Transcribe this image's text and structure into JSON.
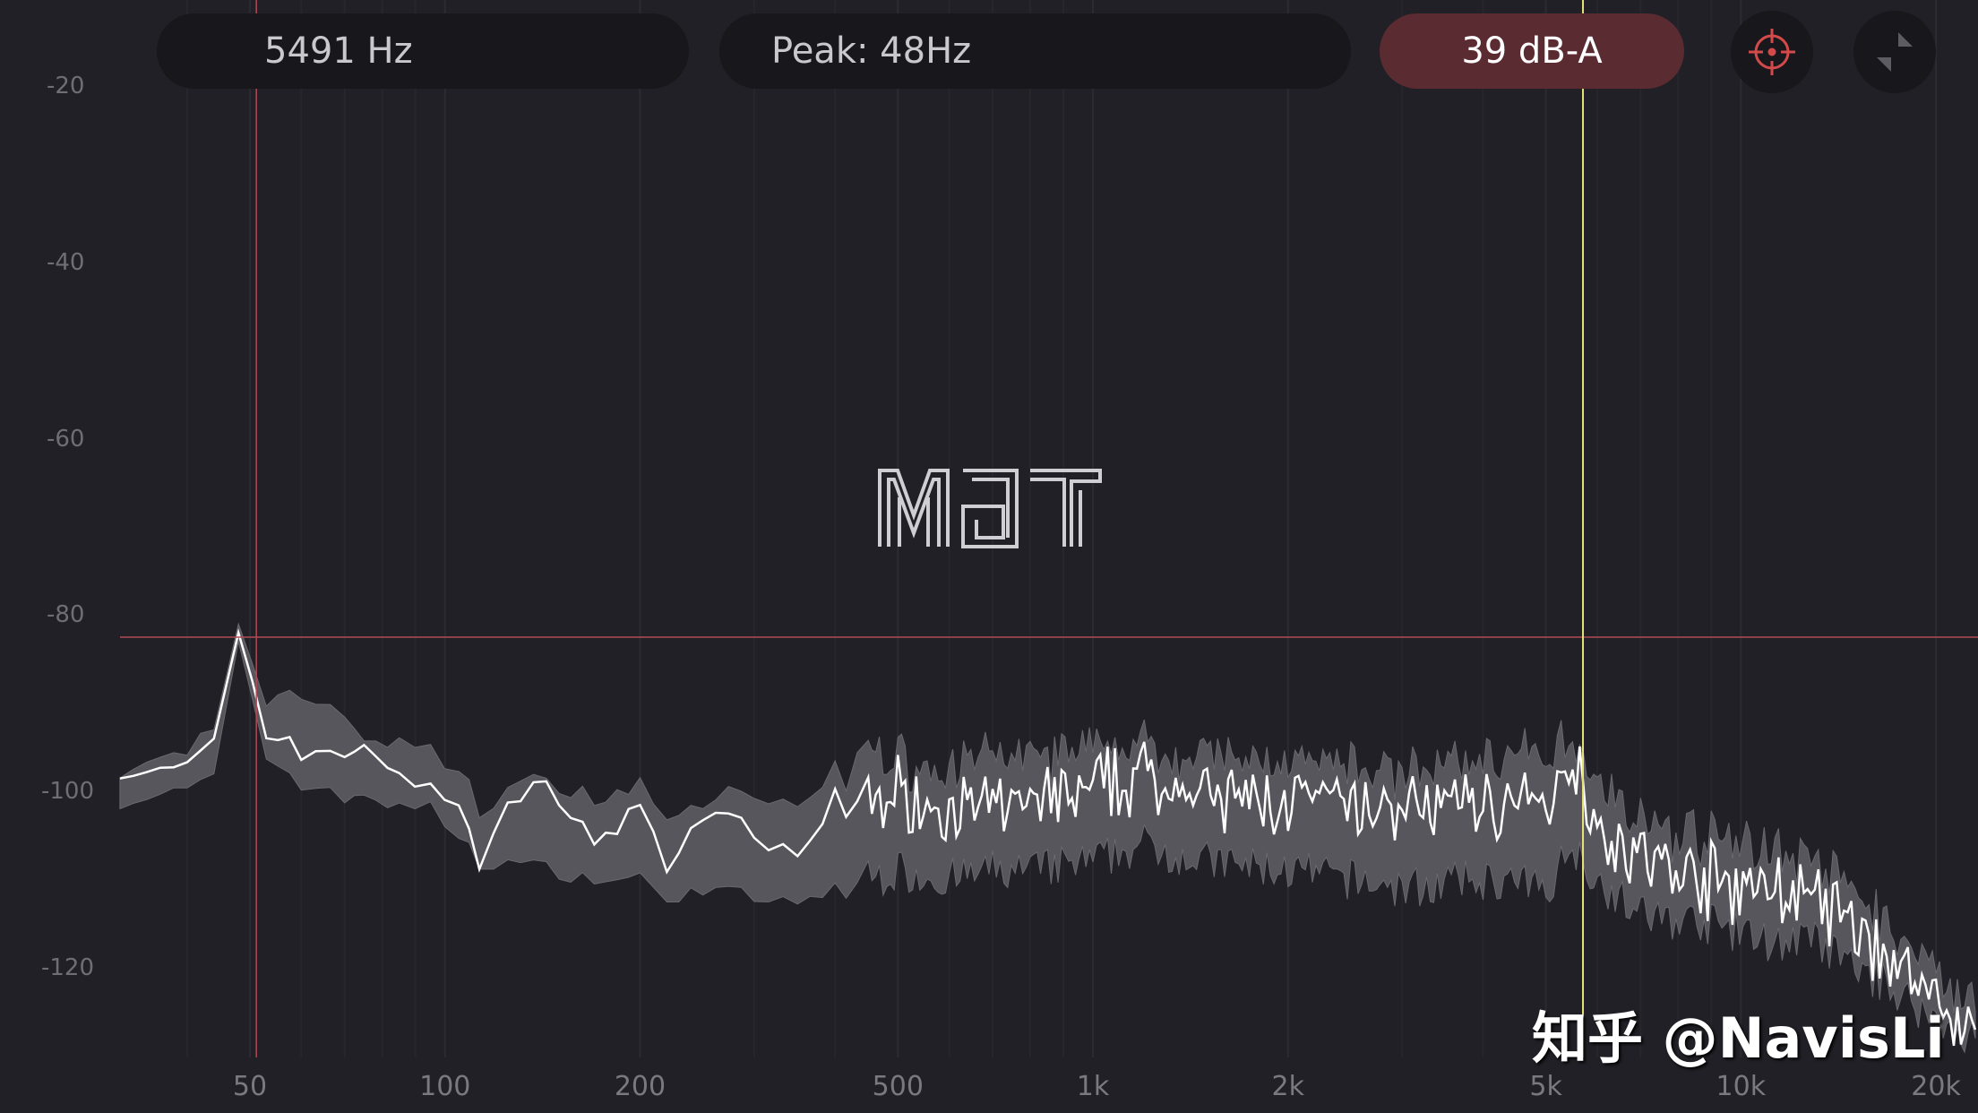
{
  "header": {
    "cursor_frequency": "5491 Hz",
    "peak": "Peak: 48Hz",
    "level": "39 dB-A",
    "level_color": "#5a2b31",
    "target_icon": "crosshair-target-icon",
    "fullscreen_icon": "collapse-arrows-icon"
  },
  "logo_text": "MDT",
  "watermark": "知乎 @NavisLi",
  "colors": {
    "background": "#212026",
    "band": "#57565c",
    "line": "#ffffff",
    "crosshair": "#b04a55",
    "cursor": "#e8e27a"
  },
  "chart_data": {
    "type": "area",
    "title": "",
    "xlabel": "",
    "ylabel": "",
    "x_scale": "log",
    "xlim": [
      31.5,
      23000
    ],
    "ylim": [
      -130,
      -14
    ],
    "x_ticks": [
      {
        "v": 50,
        "label": "50"
      },
      {
        "v": 100,
        "label": "100"
      },
      {
        "v": 200,
        "label": "200"
      },
      {
        "v": 500,
        "label": "500"
      },
      {
        "v": 1000,
        "label": "1k"
      },
      {
        "v": 2000,
        "label": "2k"
      },
      {
        "v": 5000,
        "label": "5k"
      },
      {
        "v": 10000,
        "label": "10k"
      },
      {
        "v": 20000,
        "label": "20k"
      }
    ],
    "y_ticks": [
      {
        "v": -20,
        "label": "-20"
      },
      {
        "v": -40,
        "label": "-40"
      },
      {
        "v": -60,
        "label": "-60"
      },
      {
        "v": -80,
        "label": "-80"
      },
      {
        "v": -100,
        "label": "-100"
      },
      {
        "v": -120,
        "label": "-120"
      }
    ],
    "peak_marker": {
      "frequency": 48,
      "level": -82.5
    },
    "cursor_frequency": 5491,
    "series_columns": [
      "frequency_hz",
      "min_db",
      "avg_db",
      "max_db"
    ],
    "points": [
      [
        31.5,
        -101,
        -98,
        -97.5
      ],
      [
        40,
        -100,
        -97.5,
        -96
      ],
      [
        44,
        -98,
        -94,
        -93
      ],
      [
        48,
        -83,
        -82,
        -81
      ],
      [
        53,
        -96,
        -93,
        -90
      ],
      [
        60,
        -99,
        -95,
        -89
      ],
      [
        70,
        -101,
        -96,
        -92
      ],
      [
        75,
        -100,
        -94,
        -94
      ],
      [
        85,
        -102,
        -99,
        -95
      ],
      [
        95,
        -102,
        -100,
        -96
      ],
      [
        105,
        -105,
        -101,
        -98
      ],
      [
        113,
        -108,
        -108,
        -102
      ],
      [
        125,
        -108,
        -101,
        -100
      ],
      [
        150,
        -109,
        -100,
        -99
      ],
      [
        170,
        -110,
        -106,
        -101
      ],
      [
        200,
        -110,
        -102,
        -100
      ],
      [
        220,
        -112,
        -108,
        -103
      ],
      [
        250,
        -111,
        -103,
        -101
      ],
      [
        300,
        -112,
        -105,
        -101
      ],
      [
        350,
        -113,
        -108,
        -102
      ],
      [
        400,
        -111,
        -102,
        -99
      ],
      [
        450,
        -110,
        -101,
        -96
      ],
      [
        500,
        -109,
        -100,
        -97
      ],
      [
        600,
        -110,
        -102,
        -98
      ],
      [
        700,
        -109,
        -102,
        -97
      ],
      [
        800,
        -109,
        -101,
        -97
      ],
      [
        1000,
        -108,
        -100,
        -96
      ],
      [
        1200,
        -106,
        -98,
        -95
      ],
      [
        1500,
        -108,
        -101,
        -97
      ],
      [
        2000,
        -109,
        -101,
        -97
      ],
      [
        2500,
        -110,
        -102,
        -98
      ],
      [
        3000,
        -111,
        -102,
        -98
      ],
      [
        4000,
        -110,
        -101,
        -97
      ],
      [
        5000,
        -111,
        -102,
        -97
      ],
      [
        5500,
        -106,
        -96,
        -94
      ],
      [
        6000,
        -110,
        -103,
        -99
      ],
      [
        7000,
        -114,
        -108,
        -104
      ],
      [
        9000,
        -115,
        -110,
        -106
      ],
      [
        11000,
        -117,
        -111,
        -107
      ],
      [
        13000,
        -117,
        -112,
        -109
      ],
      [
        15000,
        -120,
        -116,
        -112
      ],
      [
        17000,
        -122,
        -119,
        -116
      ],
      [
        20000,
        -126,
        -124,
        -121
      ],
      [
        23000,
        -128,
        -127,
        -125
      ]
    ]
  }
}
